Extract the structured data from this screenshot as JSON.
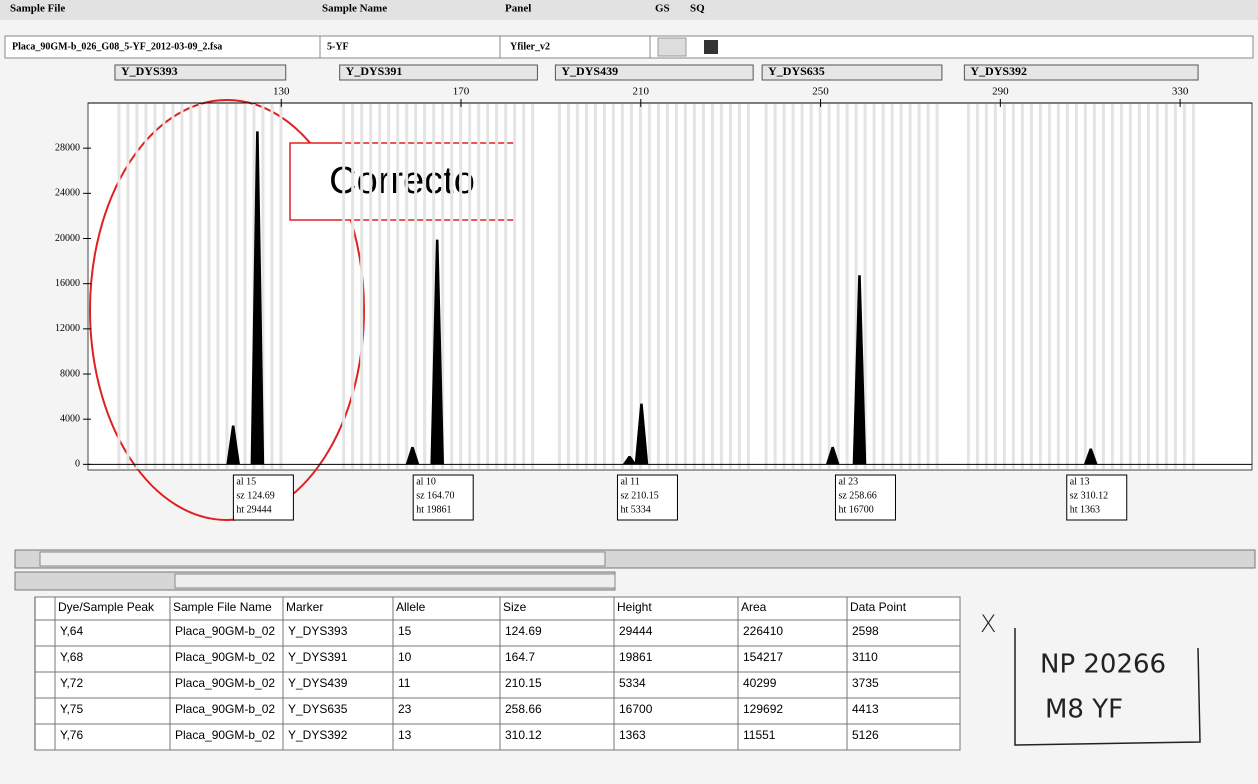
{
  "header": {
    "columns": [
      "Sample File",
      "Sample Name",
      "Panel",
      "GS",
      "SQ"
    ],
    "row": [
      "Placa_90GM-b_026_G08_5-YF_2012-03-09_2.fsa",
      "5-YF",
      "Yfiler_v2"
    ]
  },
  "chart_data": {
    "type": "electropherogram",
    "markers": [
      {
        "name": "Y_DYS393",
        "range": [
          93,
          131
        ]
      },
      {
        "name": "Y_DYS391",
        "range": [
          143,
          187
        ]
      },
      {
        "name": "Y_DYS439",
        "range": [
          191,
          235
        ]
      },
      {
        "name": "Y_DYS635",
        "range": [
          237,
          277
        ]
      },
      {
        "name": "Y_DYS392",
        "range": [
          282,
          334
        ]
      }
    ],
    "x": [
      119.3,
      124.69,
      159.2,
      164.7,
      207.5,
      210.15,
      252.7,
      258.66,
      310.12
    ],
    "values": [
      3400,
      29444,
      1500,
      19861,
      700,
      5334,
      1500,
      16700,
      1363
    ],
    "allele_labels": [
      null,
      "al 15",
      null,
      "al 10",
      null,
      "al 11",
      null,
      "al 23",
      "al 13"
    ],
    "size_labels": [
      null,
      "sz 124.69",
      null,
      "sz 164.70",
      null,
      "sz 210.15",
      null,
      "sz 258.66",
      "sz 310.12"
    ],
    "value_labels": [
      null,
      "ht 29444",
      null,
      "ht 19861",
      null,
      "ht 5334",
      null,
      "ht 16700",
      "ht 1363"
    ],
    "color": "#000000",
    "xlim": [
      87,
      346
    ],
    "xticks": [
      130,
      170,
      210,
      250,
      290,
      330
    ],
    "ylim": [
      -500,
      32000
    ],
    "yticks": [
      0,
      4000,
      8000,
      12000,
      16000,
      20000,
      24000,
      28000
    ]
  },
  "annotation": "Correcto",
  "table": {
    "columns": [
      "Dye/Sample Peak",
      "Sample File Name",
      "Marker",
      "Allele",
      "Size",
      "Height",
      "Area",
      "Data Point"
    ],
    "rows": [
      [
        "Y,64",
        "Placa_90GM-b_02",
        "Y_DYS393",
        "15",
        "124.69",
        "29444",
        "226410",
        "2598"
      ],
      [
        "Y,68",
        "Placa_90GM-b_02",
        "Y_DYS391",
        "10",
        "164.7",
        "19861",
        "154217",
        "3110"
      ],
      [
        "Y,72",
        "Placa_90GM-b_02",
        "Y_DYS439",
        "11",
        "210.15",
        "5334",
        "40299",
        "3735"
      ],
      [
        "Y,75",
        "Placa_90GM-b_02",
        "Y_DYS635",
        "23",
        "258.66",
        "16700",
        "129692",
        "4413"
      ],
      [
        "Y,76",
        "Placa_90GM-b_02",
        "Y_DYS392",
        "13",
        "310.12",
        "1363",
        "11551",
        "5126"
      ]
    ]
  },
  "handwritten": {
    "mark": "X",
    "lines": [
      "NP 20266",
      "M8 YF"
    ]
  }
}
